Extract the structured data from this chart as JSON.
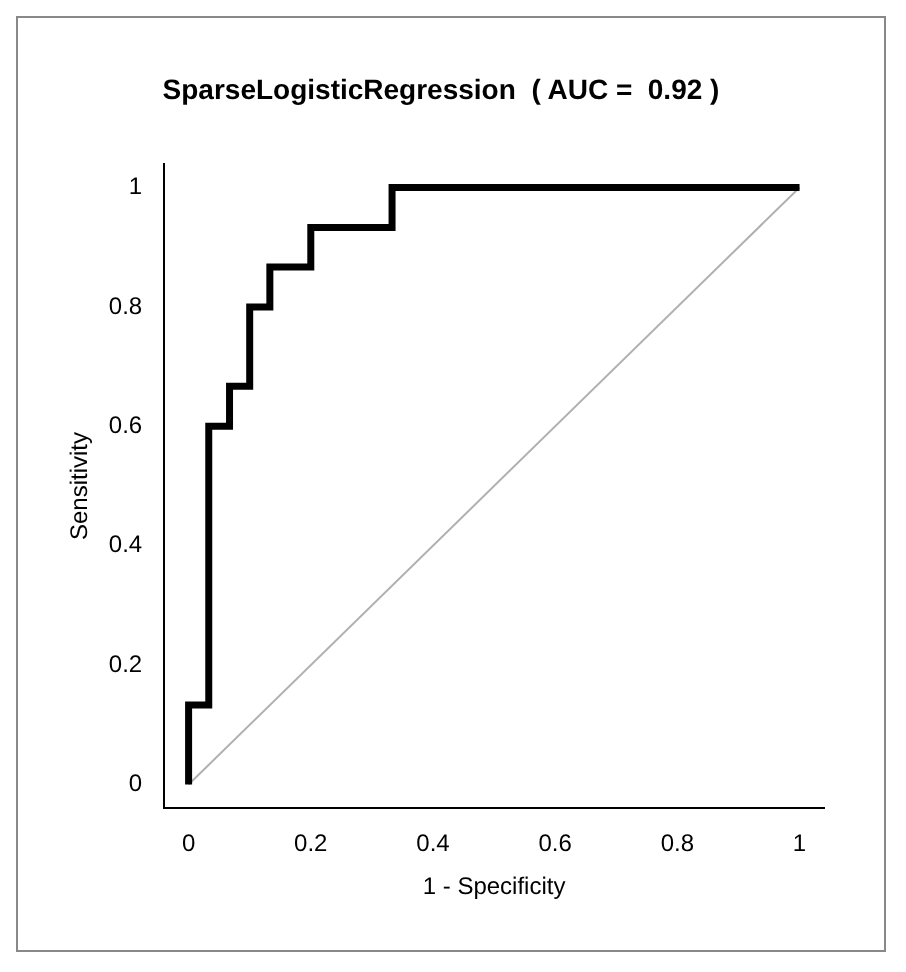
{
  "chart_data": {
    "type": "step",
    "title": "SparseLogisticRegression  ( AUC =  0.92 )",
    "xlabel": "1 - Specificity",
    "ylabel": "Sensitivity",
    "series": [
      {
        "type": "step",
        "color": "#000000",
        "x": [
          0,
          0,
          0.033,
          0.033,
          0.067,
          0.067,
          0.1,
          0.1,
          0.133,
          0.133,
          0.2,
          0.2,
          0.333,
          0.333,
          1
        ],
        "values": [
          0,
          0.133,
          0.133,
          0.6,
          0.6,
          0.667,
          0.667,
          0.8,
          0.8,
          0.867,
          0.867,
          0.933,
          0.933,
          1,
          1
        ]
      },
      {
        "type": "line",
        "color": "#b0b0b0",
        "x": [
          0,
          1
        ],
        "values": [
          0,
          1
        ]
      }
    ],
    "xlim": [
      -0.04,
      1.04
    ],
    "ylim": [
      -0.04,
      1.04
    ],
    "xticks": [
      0,
      0.2,
      0.4,
      0.6,
      0.8,
      1
    ],
    "yticks": [
      0,
      0.2,
      0.4,
      0.6,
      0.8,
      1
    ],
    "grid": false,
    "legend": false,
    "marker": "none"
  }
}
